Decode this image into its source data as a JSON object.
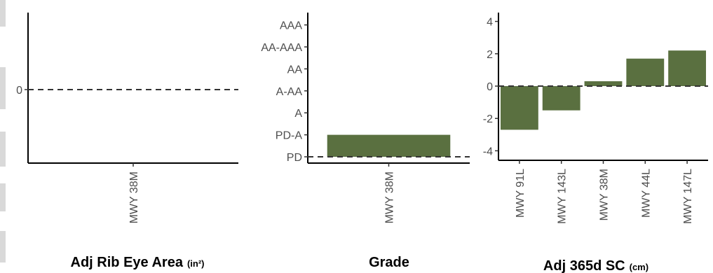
{
  "chart_data": [
    {
      "type": "bar",
      "title": "Adj Rib Eye Area",
      "title_unit": "(in²)",
      "categories": [
        "MWY 38M"
      ],
      "values": [
        0
      ],
      "y_ticks": [
        0
      ],
      "reference_line": 0,
      "bar_color": "#5a7040",
      "grid": false
    },
    {
      "type": "bar",
      "title": "Grade",
      "title_unit": "",
      "categories": [
        "MWY 38M"
      ],
      "values": [
        1
      ],
      "y_ticks": [
        "PD",
        "PD-A",
        "A",
        "A-AA",
        "AA",
        "AA-AAA",
        "AAA"
      ],
      "ylim": [
        0,
        6
      ],
      "reference_line": 0,
      "bar_color": "#5a7040",
      "grid": false
    },
    {
      "type": "bar",
      "title": "Adj 365d SC",
      "title_unit": "(cm)",
      "categories": [
        "MWY 91L",
        "MWY 143L",
        "MWY 38M",
        "MWY 44L",
        "MWY 147L"
      ],
      "values": [
        -2.7,
        -1.5,
        0.3,
        1.7,
        2.2
      ],
      "y_ticks": [
        -4,
        -2,
        0,
        2,
        4
      ],
      "ylim": [
        -4.3,
        4.2
      ],
      "reference_line": 0,
      "bar_color": "#5a7040",
      "grid": false
    }
  ]
}
